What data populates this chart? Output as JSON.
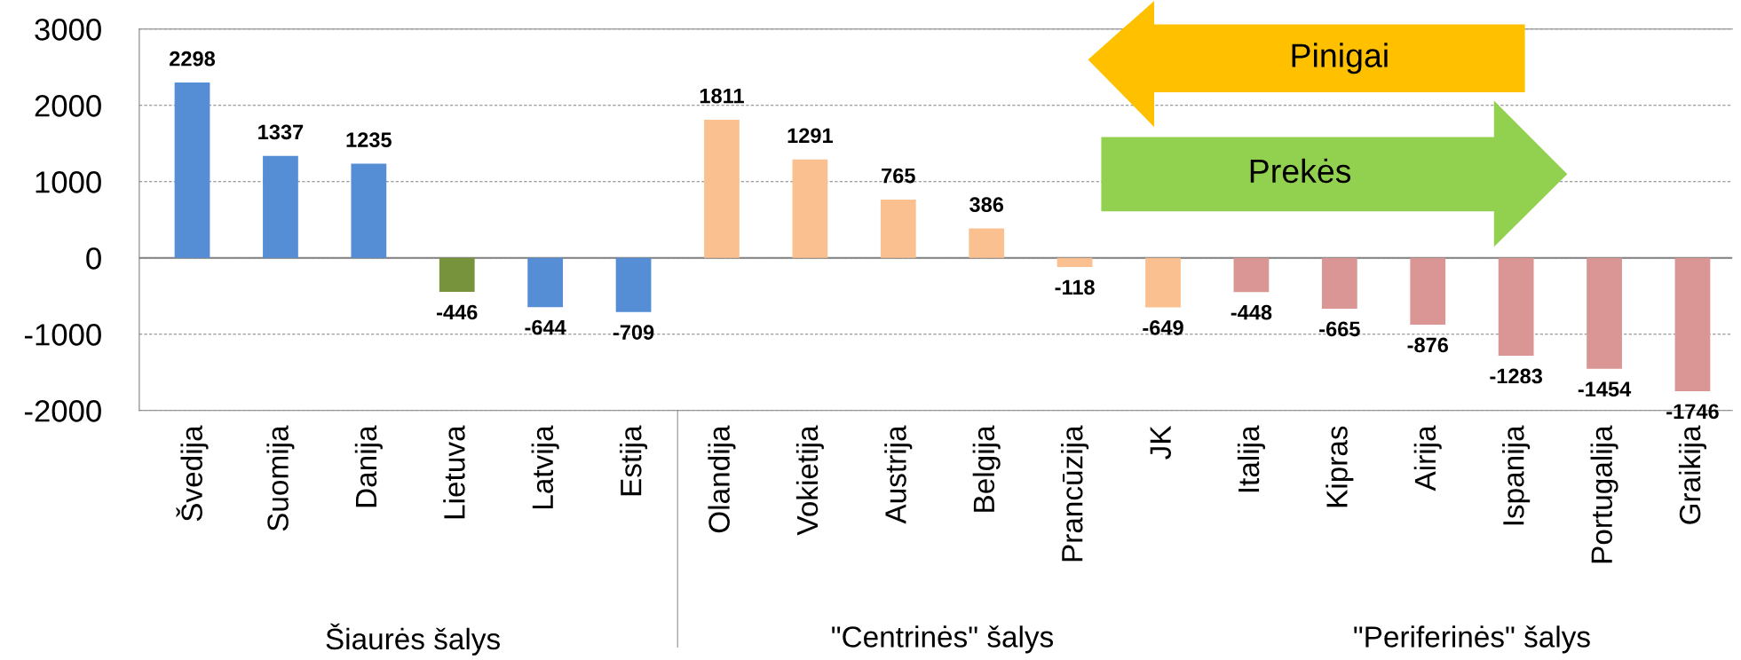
{
  "chart_data": {
    "type": "bar",
    "categories": [
      "Švedija",
      "Suomija",
      "Danija",
      "Lietuva",
      "Latvija",
      "Estija",
      "Olandija",
      "Vokietija",
      "Austrija",
      "Belgija",
      "Prancūzija",
      "JK",
      "Italija",
      "Kipras",
      "Airija",
      "Ispanija",
      "Portugalija",
      "Graikija"
    ],
    "values": [
      2298,
      1337,
      1235,
      -446,
      -644,
      -709,
      1811,
      1291,
      765,
      386,
      -118,
      -649,
      -448,
      -665,
      -876,
      -1283,
      -1454,
      -1746
    ],
    "colors": [
      "#558ed5",
      "#558ed5",
      "#558ed5",
      "#77933c",
      "#558ed5",
      "#558ed5",
      "#fac090",
      "#fac090",
      "#fac090",
      "#fac090",
      "#fac090",
      "#fac090",
      "#d99694",
      "#d99694",
      "#d99694",
      "#d99694",
      "#d99694",
      "#d99694"
    ],
    "data_labels": true,
    "ylim": [
      -2000,
      3000
    ],
    "yticks": [
      -2000,
      -1000,
      0,
      1000,
      2000,
      3000
    ],
    "grid": "y",
    "annotations": [
      "Šiaurės šalys",
      "\"Centrinės\" šalys",
      "\"Periferinės\" šalys",
      "Pinigai",
      "Prekės"
    ]
  }
}
